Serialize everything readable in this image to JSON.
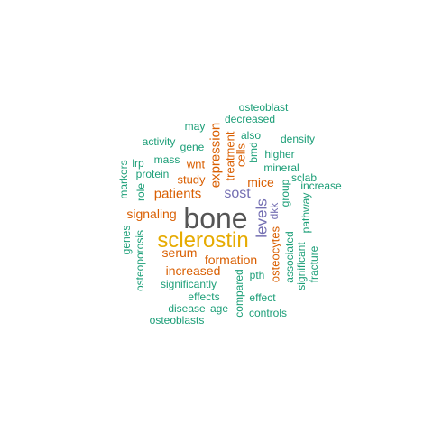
{
  "colors": {
    "teal": "#1b9e77",
    "orange": "#d95f02",
    "purple": "#7570b3",
    "gold": "#e6ab02",
    "gray": "#555555"
  },
  "words": [
    {
      "text": "bone",
      "color": "gray",
      "vertical": false
    },
    {
      "text": "sclerostin",
      "color": "gold",
      "vertical": false
    },
    {
      "text": "levels",
      "color": "purple",
      "vertical": true
    },
    {
      "text": "sost",
      "color": "purple",
      "vertical": false
    },
    {
      "text": "expression",
      "color": "orange",
      "vertical": true
    },
    {
      "text": "patients",
      "color": "orange",
      "vertical": false
    },
    {
      "text": "formation",
      "color": "orange",
      "vertical": false
    },
    {
      "text": "increased",
      "color": "orange",
      "vertical": false
    },
    {
      "text": "serum",
      "color": "orange",
      "vertical": false
    },
    {
      "text": "signaling",
      "color": "orange",
      "vertical": false
    },
    {
      "text": "mice",
      "color": "orange",
      "vertical": false
    },
    {
      "text": "osteocytes",
      "color": "orange",
      "vertical": true
    },
    {
      "text": "study",
      "color": "orange",
      "vertical": false
    },
    {
      "text": "wnt",
      "color": "orange",
      "vertical": false
    },
    {
      "text": "treatment",
      "color": "orange",
      "vertical": true
    },
    {
      "text": "cells",
      "color": "orange",
      "vertical": true
    },
    {
      "text": "dkk",
      "color": "purple",
      "vertical": true
    },
    {
      "text": "osteoblast",
      "color": "teal",
      "vertical": false
    },
    {
      "text": "decreased",
      "color": "teal",
      "vertical": false
    },
    {
      "text": "may",
      "color": "teal",
      "vertical": false
    },
    {
      "text": "also",
      "color": "teal",
      "vertical": false
    },
    {
      "text": "density",
      "color": "teal",
      "vertical": false
    },
    {
      "text": "activity",
      "color": "teal",
      "vertical": false
    },
    {
      "text": "gene",
      "color": "teal",
      "vertical": false
    },
    {
      "text": "bmd",
      "color": "teal",
      "vertical": true
    },
    {
      "text": "higher",
      "color": "teal",
      "vertical": false
    },
    {
      "text": "mass",
      "color": "teal",
      "vertical": false
    },
    {
      "text": "lrp",
      "color": "teal",
      "vertical": false
    },
    {
      "text": "mineral",
      "color": "teal",
      "vertical": false
    },
    {
      "text": "markers",
      "color": "teal",
      "vertical": true
    },
    {
      "text": "protein",
      "color": "teal",
      "vertical": false
    },
    {
      "text": "sclab",
      "color": "teal",
      "vertical": false
    },
    {
      "text": "increase",
      "color": "teal",
      "vertical": false
    },
    {
      "text": "role",
      "color": "teal",
      "vertical": true
    },
    {
      "text": "group",
      "color": "teal",
      "vertical": true
    },
    {
      "text": "pathway",
      "color": "teal",
      "vertical": true
    },
    {
      "text": "genes",
      "color": "teal",
      "vertical": true
    },
    {
      "text": "osteoporosis",
      "color": "teal",
      "vertical": true
    },
    {
      "text": "associated",
      "color": "teal",
      "vertical": true
    },
    {
      "text": "significant",
      "color": "teal",
      "vertical": true
    },
    {
      "text": "fracture",
      "color": "teal",
      "vertical": true
    },
    {
      "text": "pth",
      "color": "teal",
      "vertical": false
    },
    {
      "text": "significantly",
      "color": "teal",
      "vertical": false
    },
    {
      "text": "effects",
      "color": "teal",
      "vertical": false
    },
    {
      "text": "compared",
      "color": "teal",
      "vertical": true
    },
    {
      "text": "effect",
      "color": "teal",
      "vertical": false
    },
    {
      "text": "disease",
      "color": "teal",
      "vertical": false
    },
    {
      "text": "age",
      "color": "teal",
      "vertical": false
    },
    {
      "text": "controls",
      "color": "teal",
      "vertical": false
    },
    {
      "text": "osteoblasts",
      "color": "teal",
      "vertical": false
    }
  ]
}
